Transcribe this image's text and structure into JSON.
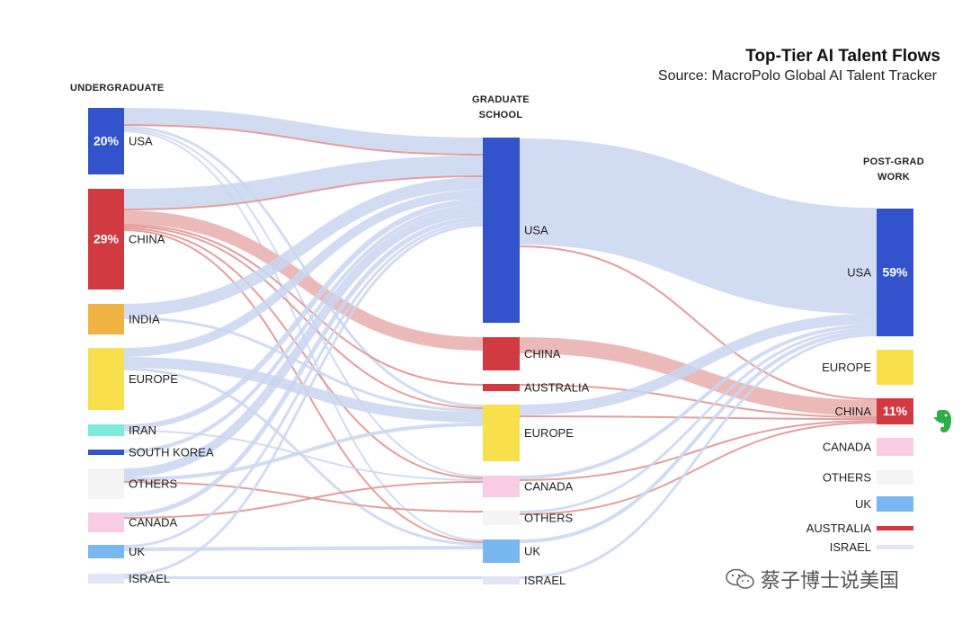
{
  "header": {
    "title": "Top-Tier AI Talent Flows",
    "source": "Source: MacroPolo Global AI Talent Tracker"
  },
  "stages": {
    "undergrad": "UNDERGRADUATE",
    "grad_line1": "GRADUATE",
    "grad_line2": "SCHOOL",
    "post_line1": "POST-GRAD",
    "post_line2": "WORK"
  },
  "watermark": {
    "text": "蔡子博士说美国",
    "icon": "wechat-icon"
  },
  "side_icon": "evernote-elephant-icon",
  "colors": {
    "usa": "#3253cc",
    "china": "#d03a40",
    "india": "#f0b342",
    "europe": "#f7e04c",
    "iran": "#7eeadc",
    "south_korea": "#3253cc",
    "others": "#f4f4f4",
    "canada": "#f8cde3",
    "uk": "#79b7f0",
    "israel": "#e2e4f8",
    "australia": "#d03a40",
    "flow_blue": "#c9d6f1",
    "flow_red": "#eab1b1",
    "flow_red_line": "#e29a98"
  },
  "chart_data": {
    "type": "sankey",
    "title": "Top-Tier AI Talent Flows",
    "subtitle": "Source: MacroPolo Global AI Talent Tracker",
    "stages": [
      "UNDERGRADUATE",
      "GRADUATE SCHOOL",
      "POST-GRAD WORK"
    ],
    "nodes": {
      "undergrad": [
        {
          "id": "u_usa",
          "label": "USA",
          "pct": "20%",
          "color": "usa"
        },
        {
          "id": "u_china",
          "label": "CHINA",
          "pct": "29%",
          "color": "china"
        },
        {
          "id": "u_india",
          "label": "INDIA",
          "color": "india"
        },
        {
          "id": "u_europe",
          "label": "EUROPE",
          "color": "europe"
        },
        {
          "id": "u_iran",
          "label": "IRAN",
          "color": "iran"
        },
        {
          "id": "u_skorea",
          "label": "SOUTH KOREA",
          "color": "south_korea"
        },
        {
          "id": "u_others",
          "label": "OTHERS",
          "color": "others"
        },
        {
          "id": "u_canada",
          "label": "CANADA",
          "color": "canada"
        },
        {
          "id": "u_uk",
          "label": "UK",
          "color": "uk"
        },
        {
          "id": "u_israel",
          "label": "ISRAEL",
          "color": "israel"
        }
      ],
      "grad": [
        {
          "id": "g_usa",
          "label": "USA",
          "color": "usa"
        },
        {
          "id": "g_china",
          "label": "CHINA",
          "color": "china"
        },
        {
          "id": "g_australia",
          "label": "AUSTRALIA",
          "color": "australia"
        },
        {
          "id": "g_europe",
          "label": "EUROPE",
          "color": "europe"
        },
        {
          "id": "g_canada",
          "label": "CANADA",
          "color": "canada"
        },
        {
          "id": "g_others",
          "label": "OTHERS",
          "color": "others"
        },
        {
          "id": "g_uk",
          "label": "UK",
          "color": "uk"
        },
        {
          "id": "g_israel",
          "label": "ISRAEL",
          "color": "israel"
        }
      ],
      "post": [
        {
          "id": "p_usa",
          "label": "USA",
          "pct": "59%",
          "color": "usa"
        },
        {
          "id": "p_europe",
          "label": "EUROPE",
          "color": "europe"
        },
        {
          "id": "p_china",
          "label": "CHINA",
          "pct": "11%",
          "color": "china"
        },
        {
          "id": "p_canada",
          "label": "CANADA",
          "color": "canada"
        },
        {
          "id": "p_others",
          "label": "OTHERS",
          "color": "others"
        },
        {
          "id": "p_uk",
          "label": "UK",
          "color": "uk"
        },
        {
          "id": "p_australia",
          "label": "AUSTRALIA",
          "color": "australia"
        },
        {
          "id": "p_israel",
          "label": "ISRAEL",
          "color": "israel"
        }
      ]
    },
    "flows": [
      {
        "from": "u_usa",
        "to": "g_usa",
        "kind": "blue",
        "w": 18
      },
      {
        "from": "u_usa",
        "to": "g_usa",
        "kind": "redline",
        "w": 2
      },
      {
        "from": "u_usa",
        "to": "g_europe",
        "kind": "blue",
        "w": 3
      },
      {
        "from": "u_usa",
        "to": "g_canada",
        "kind": "blue",
        "w": 2
      },
      {
        "from": "u_usa",
        "to": "g_uk",
        "kind": "blue",
        "w": 2
      },
      {
        "from": "u_china",
        "to": "g_usa",
        "kind": "blue",
        "w": 22
      },
      {
        "from": "u_china",
        "to": "g_usa",
        "kind": "redline",
        "w": 2
      },
      {
        "from": "u_china",
        "to": "g_china",
        "kind": "red",
        "w": 15
      },
      {
        "from": "u_china",
        "to": "g_australia",
        "kind": "redline",
        "w": 2
      },
      {
        "from": "u_china",
        "to": "g_europe",
        "kind": "redline",
        "w": 2
      },
      {
        "from": "u_china",
        "to": "g_canada",
        "kind": "redline",
        "w": 2
      },
      {
        "from": "u_china",
        "to": "g_uk",
        "kind": "redline",
        "w": 2
      },
      {
        "from": "u_india",
        "to": "g_usa",
        "kind": "blue",
        "w": 14
      },
      {
        "from": "u_india",
        "to": "g_europe",
        "kind": "blue",
        "w": 3
      },
      {
        "from": "u_europe",
        "to": "g_usa",
        "kind": "blue",
        "w": 10
      },
      {
        "from": "u_europe",
        "to": "g_europe",
        "kind": "blue",
        "w": 12
      },
      {
        "from": "u_europe",
        "to": "g_uk",
        "kind": "blue",
        "w": 3
      },
      {
        "from": "u_iran",
        "to": "g_usa",
        "kind": "blue",
        "w": 6
      },
      {
        "from": "u_iran",
        "to": "g_canada",
        "kind": "blue",
        "w": 2
      },
      {
        "from": "u_skorea",
        "to": "g_usa",
        "kind": "blue",
        "w": 4
      },
      {
        "from": "u_others",
        "to": "g_usa",
        "kind": "blue",
        "w": 10
      },
      {
        "from": "u_others",
        "to": "g_europe",
        "kind": "blue",
        "w": 4
      },
      {
        "from": "u_others",
        "to": "g_others",
        "kind": "redline",
        "w": 2
      },
      {
        "from": "u_canada",
        "to": "g_usa",
        "kind": "blue",
        "w": 5
      },
      {
        "from": "u_canada",
        "to": "g_canada",
        "kind": "redline",
        "w": 2
      },
      {
        "from": "u_uk",
        "to": "g_usa",
        "kind": "blue",
        "w": 3
      },
      {
        "from": "u_uk",
        "to": "g_uk",
        "kind": "blue",
        "w": 4
      },
      {
        "from": "u_israel",
        "to": "g_usa",
        "kind": "blue",
        "w": 3
      },
      {
        "from": "u_israel",
        "to": "g_israel",
        "kind": "blue",
        "w": 3
      },
      {
        "from": "g_usa",
        "to": "p_usa",
        "kind": "blue",
        "w": 120
      },
      {
        "from": "g_usa",
        "to": "p_china",
        "kind": "redline",
        "w": 2
      },
      {
        "from": "g_china",
        "to": "p_china",
        "kind": "red",
        "w": 18
      },
      {
        "from": "g_australia",
        "to": "p_china",
        "kind": "redline",
        "w": 2
      },
      {
        "from": "g_europe",
        "to": "p_usa",
        "kind": "blue",
        "w": 12
      },
      {
        "from": "g_europe",
        "to": "p_china",
        "kind": "redline",
        "w": 2
      },
      {
        "from": "g_canada",
        "to": "p_usa",
        "kind": "blue",
        "w": 4
      },
      {
        "from": "g_canada",
        "to": "p_china",
        "kind": "redline",
        "w": 2
      },
      {
        "from": "g_others",
        "to": "p_usa",
        "kind": "blue",
        "w": 3
      },
      {
        "from": "g_others",
        "to": "p_china",
        "kind": "redline",
        "w": 2
      },
      {
        "from": "g_uk",
        "to": "p_usa",
        "kind": "blue",
        "w": 4
      },
      {
        "from": "g_israel",
        "to": "p_usa",
        "kind": "blue",
        "w": 3
      }
    ]
  }
}
